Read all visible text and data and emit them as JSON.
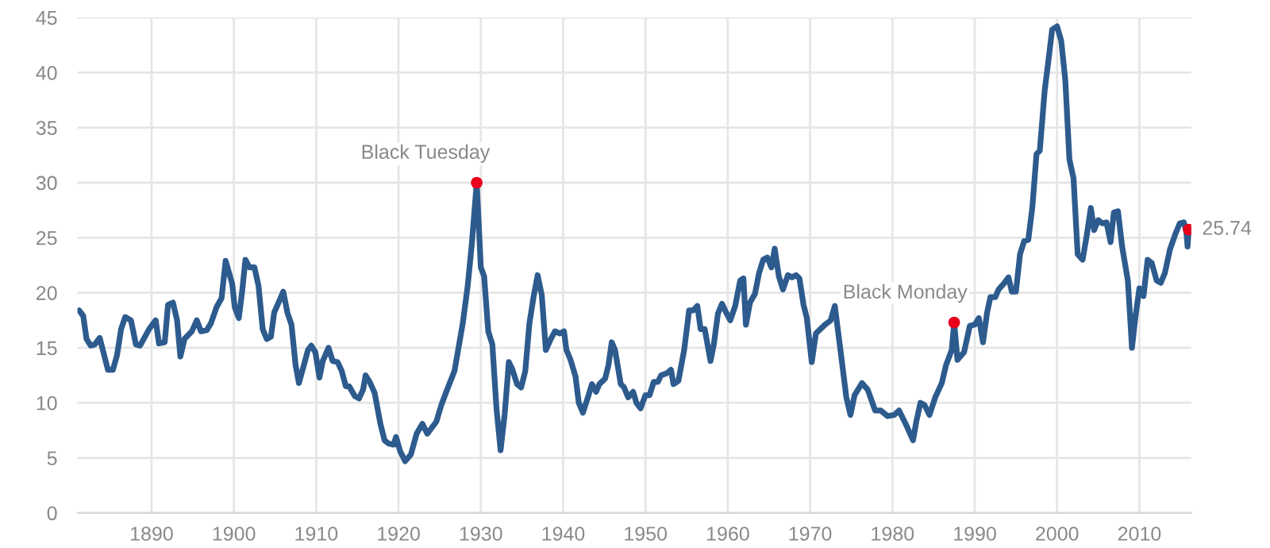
{
  "chart_data": {
    "type": "line",
    "xlim": [
      1881,
      2016.3
    ],
    "ylim": [
      0,
      45
    ],
    "xticks": [
      1890,
      1900,
      1910,
      1920,
      1930,
      1940,
      1950,
      1960,
      1970,
      1980,
      1990,
      2000,
      2010
    ],
    "yticks": [
      0,
      5,
      10,
      15,
      20,
      25,
      30,
      35,
      40,
      45
    ],
    "grid": true,
    "legend": false,
    "annotations": [
      {
        "text": "Black Tuesday",
        "x": 1929.5,
        "y": 30
      },
      {
        "text": "Black Monday",
        "x": 1987.5,
        "y": 17.3
      },
      {
        "text": "25.74",
        "x": 2016.0,
        "y": 25.74
      }
    ],
    "series": [
      {
        "color": "#2d5b8e",
        "x": [
          1881.2,
          1881.7,
          1882.1,
          1882.6,
          1883.1,
          1883.7,
          1884.7,
          1885.3,
          1885.8,
          1886.3,
          1886.8,
          1887.5,
          1888.1,
          1888.6,
          1889.2,
          1889.7,
          1890.5,
          1890.9,
          1891.6,
          1892.0,
          1892.6,
          1893.1,
          1893.5,
          1894.0,
          1894.9,
          1895.5,
          1896.0,
          1896.7,
          1897.2,
          1897.9,
          1898.5,
          1899.0,
          1899.8,
          1900.1,
          1900.6,
          1901.0,
          1901.4,
          1901.9,
          1902.5,
          1903.0,
          1903.5,
          1904.0,
          1904.5,
          1904.9,
          1905.6,
          1906.0,
          1906.5,
          1907.0,
          1907.5,
          1907.9,
          1908.5,
          1909.0,
          1909.4,
          1909.9,
          1910.4,
          1910.8,
          1911.5,
          1912.0,
          1912.6,
          1913.1,
          1913.6,
          1914.0,
          1914.7,
          1915.2,
          1915.7,
          1916.0,
          1916.5,
          1917.1,
          1917.8,
          1918.3,
          1918.8,
          1919.4,
          1919.7,
          1920.2,
          1920.8,
          1921.5,
          1922.2,
          1922.9,
          1923.5,
          1924.6,
          1925.2,
          1925.8,
          1926.8,
          1927.8,
          1928.4,
          1928.9,
          1929.5,
          1930.0,
          1930.4,
          1930.9,
          1931.4,
          1931.9,
          1932.4,
          1932.9,
          1933.4,
          1933.8,
          1934.4,
          1934.9,
          1935.4,
          1935.9,
          1936.4,
          1936.9,
          1937.4,
          1937.9,
          1938.5,
          1939.0,
          1939.6,
          1940.1,
          1940.4,
          1940.9,
          1941.5,
          1941.9,
          1942.4,
          1943.0,
          1943.5,
          1944.0,
          1944.4,
          1945.1,
          1945.5,
          1945.9,
          1946.3,
          1947.0,
          1947.4,
          1947.9,
          1948.5,
          1948.9,
          1949.4,
          1950.0,
          1950.5,
          1951.0,
          1951.5,
          1951.9,
          1952.6,
          1953.1,
          1953.4,
          1954.0,
          1954.7,
          1955.3,
          1955.8,
          1956.3,
          1956.7,
          1957.2,
          1957.9,
          1958.3,
          1958.8,
          1959.3,
          1959.8,
          1960.3,
          1960.9,
          1961.5,
          1961.9,
          1962.2,
          1962.7,
          1963.3,
          1963.8,
          1964.3,
          1964.8,
          1965.3,
          1965.7,
          1966.2,
          1966.7,
          1967.3,
          1967.8,
          1968.3,
          1968.7,
          1969.2,
          1969.6,
          1970.2,
          1970.7,
          1971.8,
          1972.5,
          1973.0,
          1973.6,
          1974.4,
          1974.9,
          1975.4,
          1976.3,
          1977.0,
          1977.9,
          1978.6,
          1979.4,
          1980.2,
          1980.8,
          1981.6,
          1982.5,
          1982.9,
          1983.4,
          1983.9,
          1984.5,
          1985.2,
          1986.0,
          1986.5,
          1987.2,
          1987.5,
          1987.9,
          1988.7,
          1989.4,
          1990.0,
          1990.5,
          1991.0,
          1991.5,
          1991.9,
          1992.5,
          1992.9,
          1993.5,
          1994.1,
          1994.5,
          1995.0,
          1995.5,
          1996.0,
          1996.5,
          1997.0,
          1997.5,
          1997.9,
          1998.5,
          1998.9,
          1999.4,
          2000.0,
          2000.5,
          2001.0,
          2001.5,
          2002.0,
          2002.5,
          2003.1,
          2003.6,
          2004.1,
          2004.5,
          2005.0,
          2005.5,
          2006.0,
          2006.5,
          2006.9,
          2007.4,
          2007.9,
          2008.6,
          2009.1,
          2009.5,
          2010.0,
          2010.5,
          2011.0,
          2011.5,
          2012.1,
          2012.6,
          2013.1,
          2013.7,
          2014.4,
          2014.9,
          2015.4,
          2015.7,
          2015.85,
          2016.0
        ],
        "values": [
          18.4,
          17.9,
          15.8,
          15.2,
          15.3,
          15.9,
          13.0,
          13.0,
          14.3,
          16.7,
          17.8,
          17.5,
          15.3,
          15.2,
          16.0,
          16.7,
          17.5,
          15.4,
          15.5,
          18.9,
          19.1,
          17.5,
          14.2,
          15.8,
          16.5,
          17.5,
          16.5,
          16.6,
          17.2,
          18.7,
          19.5,
          22.9,
          20.8,
          18.7,
          17.7,
          20.1,
          23.0,
          22.3,
          22.3,
          20.6,
          16.7,
          15.8,
          16.0,
          18.2,
          19.4,
          20.1,
          18.2,
          17.1,
          13.4,
          11.8,
          13.4,
          14.8,
          15.2,
          14.6,
          12.3,
          13.8,
          15.0,
          13.8,
          13.7,
          12.9,
          11.5,
          11.5,
          10.6,
          10.4,
          11.2,
          12.5,
          11.9,
          10.9,
          8.1,
          6.6,
          6.3,
          6.2,
          6.9,
          5.6,
          4.7,
          5.3,
          7.2,
          8.1,
          7.2,
          8.3,
          9.8,
          11.0,
          12.9,
          17.2,
          20.6,
          24.4,
          30.0,
          22.3,
          21.5,
          16.5,
          15.3,
          9.5,
          5.7,
          9.0,
          13.7,
          13.1,
          11.7,
          11.4,
          12.9,
          17.2,
          19.6,
          21.6,
          19.8,
          14.8,
          15.8,
          16.5,
          16.3,
          16.5,
          14.8,
          13.9,
          12.4,
          10.0,
          9.1,
          10.5,
          11.7,
          11.0,
          11.7,
          12.2,
          13.4,
          15.5,
          14.8,
          11.7,
          11.4,
          10.5,
          11.0,
          10.0,
          9.5,
          10.7,
          10.7,
          11.9,
          11.9,
          12.5,
          12.7,
          13.0,
          11.7,
          12.0,
          14.8,
          18.4,
          18.4,
          18.8,
          16.7,
          16.7,
          13.8,
          15.3,
          18.1,
          19.0,
          18.2,
          17.5,
          18.8,
          21.1,
          21.3,
          17.1,
          19.1,
          19.9,
          21.8,
          23.0,
          23.2,
          22.3,
          24.0,
          21.5,
          20.3,
          21.6,
          21.4,
          21.6,
          21.3,
          18.9,
          17.7,
          13.7,
          16.3,
          17.1,
          17.5,
          18.8,
          15.3,
          10.5,
          8.9,
          10.7,
          11.8,
          11.2,
          9.3,
          9.3,
          8.8,
          8.9,
          9.3,
          8.1,
          6.6,
          8.3,
          10.0,
          9.8,
          8.9,
          10.5,
          11.8,
          13.4,
          14.8,
          17.3,
          13.9,
          14.6,
          17.0,
          17.1,
          17.7,
          15.5,
          18.2,
          19.6,
          19.6,
          20.3,
          20.8,
          21.4,
          20.1,
          20.1,
          23.5,
          24.7,
          24.8,
          27.8,
          32.6,
          32.9,
          38.4,
          40.8,
          43.9,
          44.2,
          42.9,
          39.3,
          32.1,
          30.4,
          23.5,
          23.0,
          25.2,
          27.7,
          25.7,
          26.6,
          26.3,
          26.4,
          24.6,
          27.3,
          27.4,
          24.2,
          21.1,
          15.0,
          17.7,
          20.4,
          19.7,
          23.0,
          22.7,
          21.1,
          20.9,
          21.8,
          23.9,
          25.4,
          26.3,
          26.4,
          25.6,
          24.2,
          25.74
        ]
      },
      {
        "type": "scatter",
        "color": "#e8001c",
        "marker": "circle",
        "x": [
          1929.5,
          1987.5,
          2016.0
        ],
        "values": [
          30.0,
          17.3,
          25.74
        ]
      }
    ]
  }
}
